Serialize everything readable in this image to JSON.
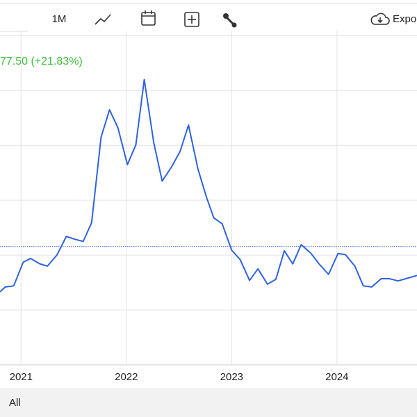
{
  "toolbar": {
    "range": "1M",
    "export": "Expo"
  },
  "footer": {
    "range": "All"
  },
  "chart_data": {
    "type": "line",
    "annotation": "77.50 (+21.83%)",
    "x": [
      2020.8,
      2020.85,
      2020.93,
      2021.02,
      2021.09,
      2021.18,
      2021.25,
      2021.34,
      2021.43,
      2021.51,
      2021.59,
      2021.67,
      2021.76,
      2021.84,
      2021.92,
      2022.01,
      2022.09,
      2022.17,
      2022.26,
      2022.34,
      2022.43,
      2022.51,
      2022.59,
      2022.68,
      2022.76,
      2022.83,
      2022.91,
      2023.0,
      2023.08,
      2023.17,
      2023.25,
      2023.34,
      2023.42,
      2023.5,
      2023.58,
      2023.66,
      2023.75,
      2023.83,
      2023.92,
      2024.01,
      2024.08,
      2024.17,
      2024.25,
      2024.33,
      2024.42,
      2024.5,
      2024.58,
      2024.67,
      2024.76
    ],
    "series": [
      {
        "color": "#2f62e0",
        "values": [
          1.33,
          1.42,
          1.44,
          1.87,
          1.94,
          1.84,
          1.8,
          2.0,
          2.34,
          2.29,
          2.25,
          2.59,
          4.15,
          4.65,
          4.32,
          3.65,
          4.01,
          5.2,
          4.05,
          3.35,
          3.61,
          3.89,
          4.37,
          3.57,
          3.06,
          2.68,
          2.57,
          2.09,
          1.92,
          1.54,
          1.75,
          1.47,
          1.56,
          2.08,
          1.84,
          2.19,
          2.04,
          1.84,
          1.65,
          2.03,
          2.01,
          1.8,
          1.44,
          1.42,
          1.57,
          1.57,
          1.53,
          1.58,
          1.63
        ]
      }
    ],
    "reference_line": {
      "value": 2.16,
      "color": "#5a7fd6"
    },
    "xlim": [
      2020.8,
      2024.76
    ],
    "xticks": [
      2021,
      2022,
      2023,
      2024
    ],
    "ylim": [
      0,
      6.08
    ],
    "ygrid": [
      1,
      2,
      3,
      4,
      5,
      6
    ],
    "grid": true
  }
}
